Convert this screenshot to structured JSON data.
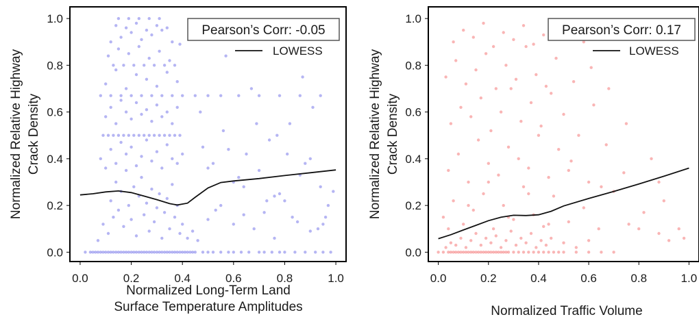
{
  "chart_data": [
    {
      "type": "scatter",
      "xlabel": [
        "Normalized Long-Term Land",
        "Surface  Temperature Amplitudes"
      ],
      "ylabel": [
        "Normalized Relative Highway",
        "Crack Density"
      ],
      "xlim": [
        -0.04,
        1.04
      ],
      "ylim": [
        -0.04,
        1.05
      ],
      "xticks": [
        0.0,
        0.2,
        0.4,
        0.6,
        0.8,
        1.0
      ],
      "xtick_labels": [
        "0.0",
        "0.2",
        "0.4",
        "0.6",
        "0.8",
        "1.0"
      ],
      "yticks": [
        0.0,
        0.2,
        0.4,
        0.6,
        0.8,
        1.0
      ],
      "ytick_labels": [
        "0.0",
        "0.2",
        "0.4",
        "0.6",
        "0.8",
        "1.0"
      ],
      "annotation": "Pearson’s Corr: -0.05",
      "legend": {
        "label": "LOWESS",
        "placement": "top-right"
      },
      "grid": false,
      "point_color": "#2b2bdd",
      "line_color": "#111111",
      "series": [
        {
          "name": "",
          "x": [
            0.02,
            0.04,
            0.05,
            0.06,
            0.07,
            0.08,
            0.09,
            0.1,
            0.11,
            0.12,
            0.13,
            0.14,
            0.15,
            0.16,
            0.17,
            0.18,
            0.19,
            0.2,
            0.21,
            0.22,
            0.23,
            0.24,
            0.25,
            0.26,
            0.27,
            0.28,
            0.29,
            0.3,
            0.31,
            0.32,
            0.33,
            0.34,
            0.35,
            0.36,
            0.37,
            0.38,
            0.39,
            0.4,
            0.41,
            0.42,
            0.43,
            0.44,
            0.45,
            0.48,
            0.5,
            0.52,
            0.55,
            0.58,
            0.6,
            0.63,
            0.66,
            0.7,
            0.72,
            0.75,
            0.78,
            0.8,
            0.84,
            0.88,
            0.92,
            0.95,
            0.98,
            0.07,
            0.09,
            0.11,
            0.12,
            0.13,
            0.14,
            0.15,
            0.16,
            0.17,
            0.18,
            0.19,
            0.2,
            0.21,
            0.22,
            0.23,
            0.24,
            0.25,
            0.26,
            0.27,
            0.28,
            0.29,
            0.3,
            0.31,
            0.32,
            0.33,
            0.34,
            0.35,
            0.36,
            0.37,
            0.38,
            0.39,
            0.4,
            0.42,
            0.44,
            0.46,
            0.5,
            0.55,
            0.6,
            0.64,
            0.68,
            0.72,
            0.76,
            0.8,
            0.85,
            0.9,
            0.96,
            0.08,
            0.1,
            0.12,
            0.14,
            0.16,
            0.18,
            0.2,
            0.22,
            0.24,
            0.26,
            0.28,
            0.3,
            0.32,
            0.34,
            0.36,
            0.38,
            0.4,
            0.09,
            0.11,
            0.13,
            0.15,
            0.17,
            0.19,
            0.21,
            0.23,
            0.25,
            0.27,
            0.29,
            0.31,
            0.33,
            0.35,
            0.37,
            0.39,
            0.1,
            0.12,
            0.14,
            0.16,
            0.18,
            0.2,
            0.22,
            0.24,
            0.26,
            0.28,
            0.3,
            0.32,
            0.34,
            0.36,
            0.38,
            0.08,
            0.12,
            0.16,
            0.2,
            0.24,
            0.28,
            0.32,
            0.36,
            0.4,
            0.45,
            0.5,
            0.55,
            0.62,
            0.7,
            0.78,
            0.86,
            0.94,
            0.1,
            0.14,
            0.18,
            0.22,
            0.26,
            0.3,
            0.34,
            0.38,
            0.13,
            0.17,
            0.21,
            0.25,
            0.29,
            0.33,
            0.37,
            0.11,
            0.15,
            0.19,
            0.23,
            0.27,
            0.31,
            0.35,
            0.39,
            0.12,
            0.16,
            0.2,
            0.24,
            0.28,
            0.32,
            0.36,
            0.14,
            0.18,
            0.22,
            0.26,
            0.3,
            0.34,
            0.15,
            0.19,
            0.23,
            0.27,
            0.31,
            0.48,
            0.52,
            0.56,
            0.6,
            0.65,
            0.7,
            0.74,
            0.78,
            0.82,
            0.86,
            0.9,
            0.94,
            0.97,
            0.47,
            0.53,
            0.58,
            0.62,
            0.67,
            0.73,
            0.77,
            0.83,
            0.88,
            0.91,
            0.95,
            0.99,
            0.5,
            0.57,
            0.64,
            0.69,
            0.76,
            0.81,
            0.87,
            0.93
          ],
          "y": [
            0.0,
            0.0,
            0.0,
            0.0,
            0.0,
            0.0,
            0.0,
            0.0,
            0.0,
            0.0,
            0.0,
            0.0,
            0.0,
            0.0,
            0.0,
            0.0,
            0.0,
            0.0,
            0.0,
            0.0,
            0.0,
            0.0,
            0.0,
            0.0,
            0.0,
            0.0,
            0.0,
            0.0,
            0.0,
            0.0,
            0.0,
            0.0,
            0.0,
            0.0,
            0.0,
            0.0,
            0.0,
            0.0,
            0.0,
            0.0,
            0.0,
            0.0,
            0.0,
            0.0,
            0.0,
            0.0,
            0.0,
            0.0,
            0.0,
            0.0,
            0.0,
            0.0,
            0.0,
            0.0,
            0.0,
            0.0,
            0.0,
            0.0,
            0.0,
            0.0,
            0.0,
            0.05,
            0.12,
            0.08,
            0.22,
            0.15,
            0.3,
            0.18,
            0.26,
            0.11,
            0.35,
            0.2,
            0.14,
            0.28,
            0.07,
            0.24,
            0.32,
            0.16,
            0.21,
            0.09,
            0.27,
            0.13,
            0.19,
            0.25,
            0.06,
            0.17,
            0.23,
            0.1,
            0.29,
            0.15,
            0.2,
            0.08,
            0.12,
            0.06,
            0.09,
            0.05,
            0.14,
            0.2,
            0.12,
            0.28,
            0.1,
            0.17,
            0.06,
            0.22,
            0.13,
            0.09,
            0.15,
            0.4,
            0.36,
            0.44,
            0.38,
            0.47,
            0.42,
            0.45,
            0.37,
            0.41,
            0.48,
            0.39,
            0.43,
            0.36,
            0.46,
            0.4,
            0.38,
            0.42,
            0.5,
            0.5,
            0.5,
            0.5,
            0.5,
            0.5,
            0.5,
            0.5,
            0.5,
            0.5,
            0.5,
            0.5,
            0.5,
            0.5,
            0.5,
            0.5,
            0.58,
            0.62,
            0.55,
            0.65,
            0.6,
            0.57,
            0.64,
            0.59,
            0.61,
            0.56,
            0.63,
            0.58,
            0.6,
            0.55,
            0.62,
            0.67,
            0.67,
            0.67,
            0.67,
            0.67,
            0.67,
            0.67,
            0.67,
            0.67,
            0.67,
            0.67,
            0.67,
            0.67,
            0.67,
            0.67,
            0.67,
            0.67,
            0.72,
            0.78,
            0.7,
            0.76,
            0.74,
            0.71,
            0.77,
            0.73,
            0.8,
            0.8,
            0.8,
            0.8,
            0.8,
            0.8,
            0.8,
            0.84,
            0.87,
            0.85,
            0.88,
            0.83,
            0.86,
            0.82,
            0.89,
            0.9,
            0.92,
            0.94,
            0.91,
            0.93,
            0.95,
            0.9,
            0.97,
            0.96,
            0.98,
            0.95,
            0.97,
            0.96,
            1.0,
            1.0,
            1.0,
            1.0,
            1.0,
            0.45,
            0.38,
            0.52,
            0.3,
            0.42,
            0.35,
            0.48,
            0.25,
            0.55,
            0.33,
            0.4,
            0.28,
            0.2,
            0.6,
            0.18,
            0.44,
            0.32,
            0.7,
            0.22,
            0.5,
            0.15,
            0.38,
            0.62,
            0.12,
            0.26,
            0.36,
            0.84,
            0.16,
            0.55,
            0.24,
            0.42,
            0.75,
            0.1
          ],
          "lowess": {
            "x": [
              0.0,
              0.05,
              0.1,
              0.15,
              0.2,
              0.25,
              0.3,
              0.35,
              0.38,
              0.42,
              0.45,
              0.5,
              0.55,
              0.6,
              0.7,
              0.8,
              0.9,
              1.0
            ],
            "y": [
              0.245,
              0.25,
              0.258,
              0.262,
              0.255,
              0.24,
              0.225,
              0.208,
              0.202,
              0.21,
              0.235,
              0.275,
              0.298,
              0.305,
              0.315,
              0.328,
              0.34,
              0.352
            ]
          }
        }
      ]
    },
    {
      "type": "scatter",
      "xlabel": [
        "Normalized Traffic Volume"
      ],
      "ylabel": [
        "Normalized Relative Highway",
        "Crack Density"
      ],
      "xlim": [
        -0.04,
        1.04
      ],
      "ylim": [
        -0.04,
        1.05
      ],
      "xticks": [
        0.0,
        0.2,
        0.4,
        0.6,
        0.8,
        1.0
      ],
      "xtick_labels": [
        "0.0",
        "0.2",
        "0.4",
        "0.6",
        "0.8",
        "1.0"
      ],
      "yticks": [
        0.0,
        0.2,
        0.4,
        0.6,
        0.8,
        1.0
      ],
      "ytick_labels": [
        "0.0",
        "0.2",
        "0.4",
        "0.6",
        "0.8",
        "1.0"
      ],
      "annotation": "Pearson’s Corr: 0.17",
      "legend": {
        "label": "LOWESS",
        "placement": "top-right"
      },
      "grid": false,
      "point_color": "#ee2a2a",
      "line_color": "#111111",
      "series": [
        {
          "name": "",
          "x": [
            0.0,
            0.02,
            0.04,
            0.05,
            0.06,
            0.07,
            0.08,
            0.09,
            0.1,
            0.11,
            0.12,
            0.13,
            0.14,
            0.15,
            0.16,
            0.17,
            0.18,
            0.19,
            0.2,
            0.21,
            0.22,
            0.23,
            0.24,
            0.25,
            0.26,
            0.27,
            0.28,
            0.3,
            0.32,
            0.34,
            0.36,
            0.38,
            0.4,
            0.42,
            0.44,
            0.46,
            0.48,
            0.5,
            0.55,
            0.6,
            0.65,
            0.7,
            0.03,
            0.05,
            0.07,
            0.09,
            0.11,
            0.13,
            0.15,
            0.17,
            0.19,
            0.21,
            0.23,
            0.25,
            0.27,
            0.29,
            0.31,
            0.33,
            0.35,
            0.37,
            0.39,
            0.41,
            0.43,
            0.45,
            0.5,
            0.55,
            0.6,
            0.02,
            0.06,
            0.1,
            0.14,
            0.18,
            0.22,
            0.26,
            0.3,
            0.34,
            0.38,
            0.42,
            0.46,
            0.52,
            0.58,
            0.64,
            0.7,
            0.76,
            0.82,
            0.88,
            0.04,
            0.08,
            0.12,
            0.16,
            0.2,
            0.24,
            0.28,
            0.32,
            0.36,
            0.4,
            0.44,
            0.48,
            0.53,
            0.6,
            0.67,
            0.74,
            0.05,
            0.09,
            0.13,
            0.17,
            0.21,
            0.25,
            0.29,
            0.33,
            0.37,
            0.41,
            0.45,
            0.5,
            0.56,
            0.62,
            0.03,
            0.07,
            0.11,
            0.15,
            0.19,
            0.23,
            0.27,
            0.31,
            0.35,
            0.39,
            0.43,
            0.47,
            0.54,
            0.61,
            0.68,
            0.06,
            0.1,
            0.14,
            0.18,
            0.22,
            0.26,
            0.3,
            0.34,
            0.38,
            0.42,
            0.5,
            0.58,
            0.04,
            0.12,
            0.2,
            0.28,
            0.36,
            0.44,
            0.52,
            0.65,
            0.8,
            0.92,
            0.98,
            0.85,
            0.9,
            0.96,
            0.75,
            0.88
          ],
          "y": [
            0.0,
            0.0,
            0.0,
            0.0,
            0.0,
            0.0,
            0.0,
            0.0,
            0.0,
            0.0,
            0.0,
            0.0,
            0.0,
            0.0,
            0.0,
            0.0,
            0.0,
            0.0,
            0.0,
            0.0,
            0.0,
            0.0,
            0.0,
            0.0,
            0.0,
            0.0,
            0.0,
            0.0,
            0.0,
            0.0,
            0.0,
            0.0,
            0.0,
            0.0,
            0.0,
            0.0,
            0.0,
            0.0,
            0.0,
            0.0,
            0.0,
            0.0,
            0.02,
            0.04,
            0.03,
            0.06,
            0.02,
            0.05,
            0.08,
            0.03,
            0.06,
            0.04,
            0.07,
            0.02,
            0.05,
            0.09,
            0.03,
            0.06,
            0.04,
            0.08,
            0.02,
            0.05,
            0.03,
            0.06,
            0.04,
            0.02,
            0.05,
            0.15,
            0.22,
            0.12,
            0.18,
            0.25,
            0.1,
            0.2,
            0.14,
            0.28,
            0.16,
            0.11,
            0.24,
            0.13,
            0.19,
            0.1,
            0.26,
            0.12,
            0.17,
            0.08,
            0.35,
            0.42,
            0.3,
            0.48,
            0.38,
            0.33,
            0.45,
            0.4,
            0.36,
            0.5,
            0.32,
            0.44,
            0.39,
            0.3,
            0.46,
            0.34,
            0.55,
            0.62,
            0.58,
            0.66,
            0.52,
            0.6,
            0.7,
            0.56,
            0.64,
            0.54,
            0.68,
            0.59,
            0.5,
            0.63,
            0.75,
            0.82,
            0.72,
            0.78,
            0.85,
            0.7,
            0.8,
            0.74,
            0.88,
            0.76,
            0.71,
            0.83,
            0.73,
            0.79,
            0.7,
            0.9,
            0.95,
            0.92,
            0.98,
            0.88,
            0.94,
            0.91,
            0.97,
            0.89,
            0.93,
            0.96,
            0.9,
            0.1,
            0.2,
            0.3,
            0.15,
            0.25,
            0.12,
            0.35,
            0.28,
            0.1,
            0.05,
            0.06,
            0.4,
            0.22,
            0.1,
            0.55,
            0.3
          ],
          "lowess": {
            "x": [
              0.0,
              0.05,
              0.1,
              0.15,
              0.2,
              0.25,
              0.3,
              0.35,
              0.4,
              0.45,
              0.5,
              0.6,
              0.7,
              0.8,
              0.9,
              1.0
            ],
            "y": [
              0.058,
              0.075,
              0.095,
              0.115,
              0.135,
              0.15,
              0.158,
              0.157,
              0.16,
              0.175,
              0.198,
              0.23,
              0.26,
              0.292,
              0.325,
              0.36
            ]
          }
        }
      ]
    }
  ]
}
